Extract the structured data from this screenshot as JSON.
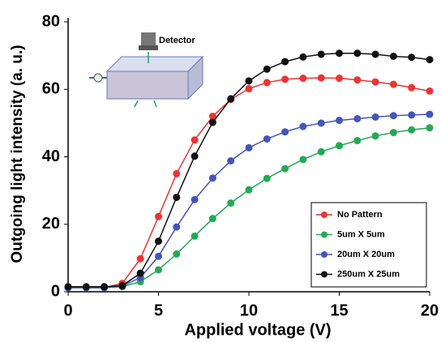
{
  "chart_data": {
    "type": "line",
    "xlabel": "Applied voltage (V)",
    "ylabel": "Outgoing light intensity (a. u.)",
    "inset_label": "Detector",
    "x": [
      0,
      1,
      2,
      3,
      4,
      5,
      6,
      7,
      8,
      9,
      10,
      11,
      12,
      13,
      14,
      15,
      16,
      17,
      18,
      19,
      20
    ],
    "series": [
      {
        "name": "No Pattern",
        "color": "#ee3333",
        "values": [
          1.2,
          1.2,
          1.2,
          2.5,
          9.8,
          22.3,
          35,
          45,
          52,
          57,
          60.2,
          62,
          63,
          63.3,
          63.4,
          63.3,
          62.8,
          62.2,
          61.5,
          60.5,
          59.5
        ]
      },
      {
        "name": "5um X 5um",
        "color": "#22aa55",
        "values": [
          1.2,
          1.2,
          1.2,
          1.5,
          3,
          6.5,
          11.2,
          16.5,
          21.7,
          26.3,
          30.2,
          33.6,
          36.5,
          39.2,
          41.5,
          43.3,
          44.8,
          46.2,
          47.2,
          48,
          48.6
        ]
      },
      {
        "name": "20um X 20um",
        "color": "#4455bb",
        "values": [
          1.2,
          1.2,
          1.2,
          1.7,
          4.2,
          10.5,
          19.2,
          27.3,
          33.7,
          38.8,
          42.7,
          45.3,
          47.4,
          49,
          50,
          50.8,
          51.3,
          51.8,
          52.2,
          52.4,
          52.6
        ]
      },
      {
        "name": "250um X 25um",
        "color": "#111111",
        "values": [
          1.5,
          1.5,
          1.5,
          1.8,
          5.5,
          15,
          28,
          40.2,
          50.2,
          57.2,
          62.5,
          66,
          68.2,
          69.6,
          70.4,
          70.7,
          70.7,
          70.4,
          69.8,
          69.5,
          68.8
        ]
      }
    ],
    "xlim": [
      0,
      20
    ],
    "xticks": [
      0,
      5,
      10,
      15,
      20
    ],
    "ylim": [
      0,
      80
    ],
    "yticks": [
      0,
      20,
      40,
      60,
      80
    ],
    "legend": "lower right",
    "grid": false
  }
}
